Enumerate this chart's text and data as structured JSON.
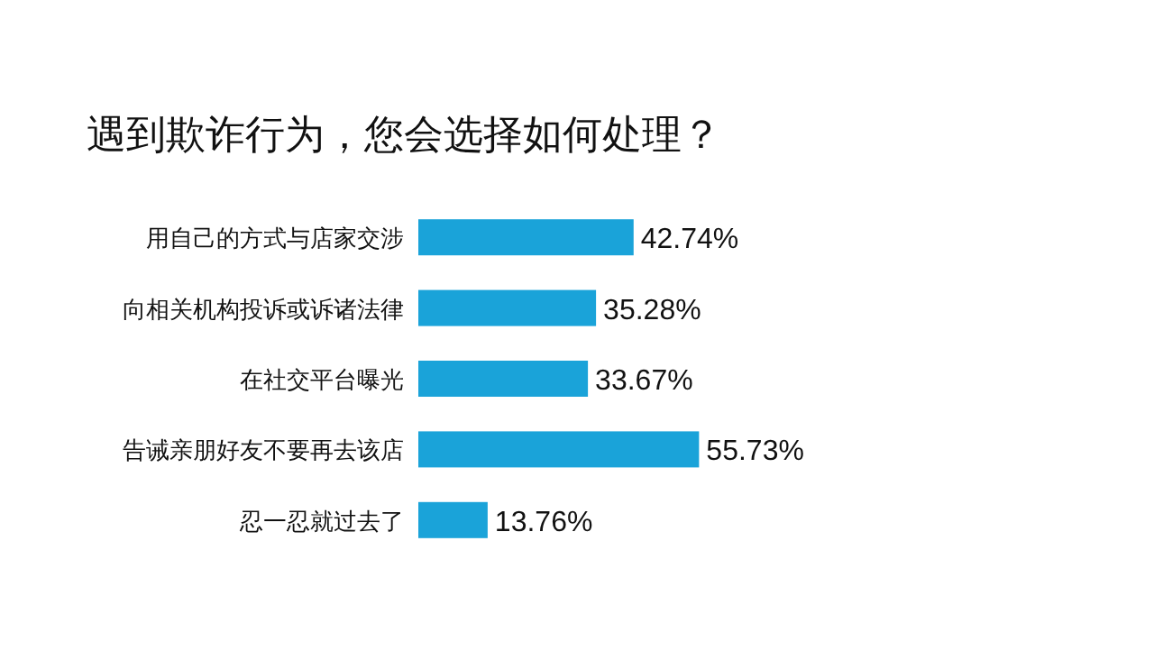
{
  "chart_data": {
    "type": "bar",
    "orientation": "horizontal",
    "title": "遇到欺诈行为，您会选择如何处理？",
    "categories": [
      "用自己的方式与店家交涉",
      "向相关机构投诉或诉诸法律",
      "在社交平台曝光",
      "告诫亲朋好友不要再去该店",
      "忍一忍就过去了"
    ],
    "values": [
      42.74,
      35.28,
      33.67,
      55.73,
      13.76
    ],
    "value_labels": [
      "42.74%",
      "35.28%",
      "33.67%",
      "55.73%",
      "13.76%"
    ],
    "color": "#1aa3d9"
  }
}
